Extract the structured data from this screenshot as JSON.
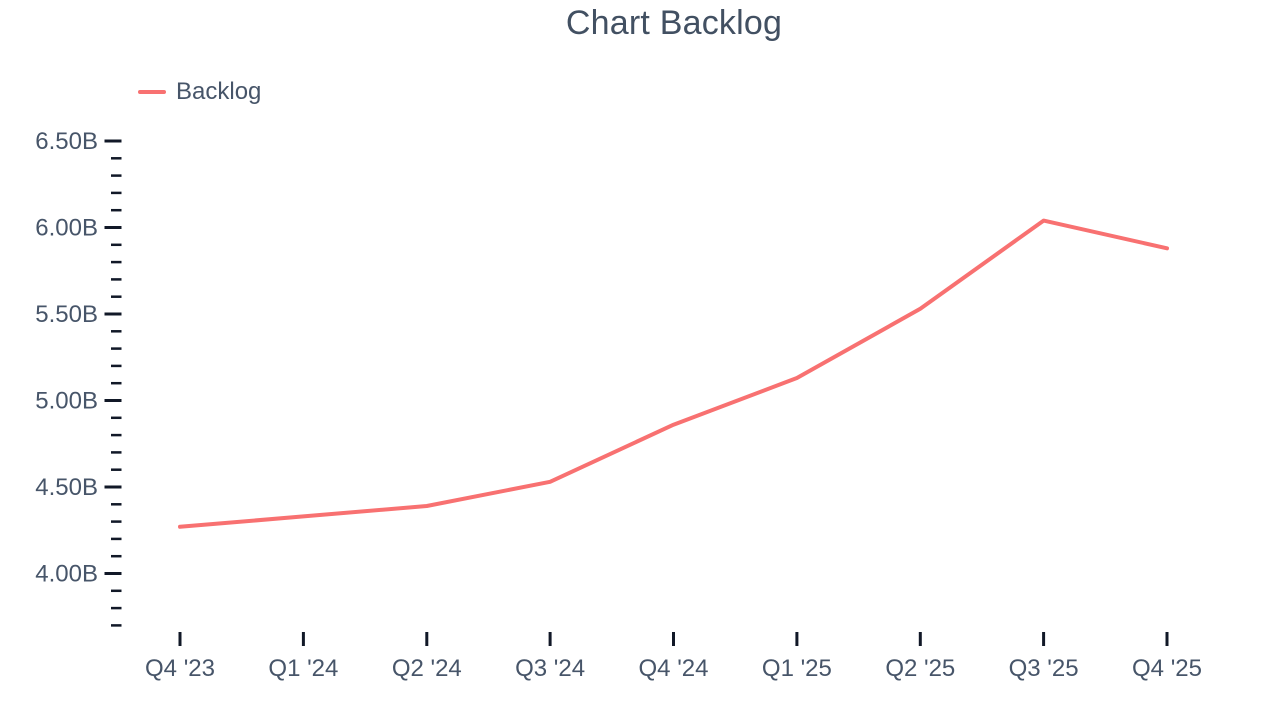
{
  "header": {
    "title": "Chart Backlog"
  },
  "legend": {
    "items": [
      {
        "label": "Backlog",
        "color": "#f87171"
      }
    ]
  },
  "colors": {
    "line": "#f87171",
    "title_text": "#425062",
    "label_text": "#475569",
    "tick": "#111827",
    "background": "#ffffff"
  },
  "chart_data": {
    "type": "line",
    "title": "Chart Backlog",
    "categories": [
      "Q4 '23",
      "Q1 '24",
      "Q2 '24",
      "Q3 '24",
      "Q4 '24",
      "Q1 '25",
      "Q2 '25",
      "Q3 '25",
      "Q4 '25"
    ],
    "series": [
      {
        "name": "Backlog",
        "color": "#f87171",
        "values": [
          4.27,
          4.33,
          4.39,
          4.53,
          4.86,
          5.13,
          5.53,
          6.04,
          5.88
        ]
      }
    ],
    "value_unit": "B",
    "xlabel": "",
    "ylabel": "",
    "y_axis": {
      "major_ticks": [
        6.5,
        6.0,
        5.5,
        5.0,
        4.5,
        4.0
      ],
      "major_tick_labels": [
        "6.50B",
        "6.00B",
        "5.50B",
        "5.00B",
        "4.50B",
        "4.00B"
      ],
      "minor_tick_step": 0.1,
      "range_top": 6.5,
      "range_bottom": 3.7
    },
    "legend_position": "top-left",
    "grid": false
  }
}
